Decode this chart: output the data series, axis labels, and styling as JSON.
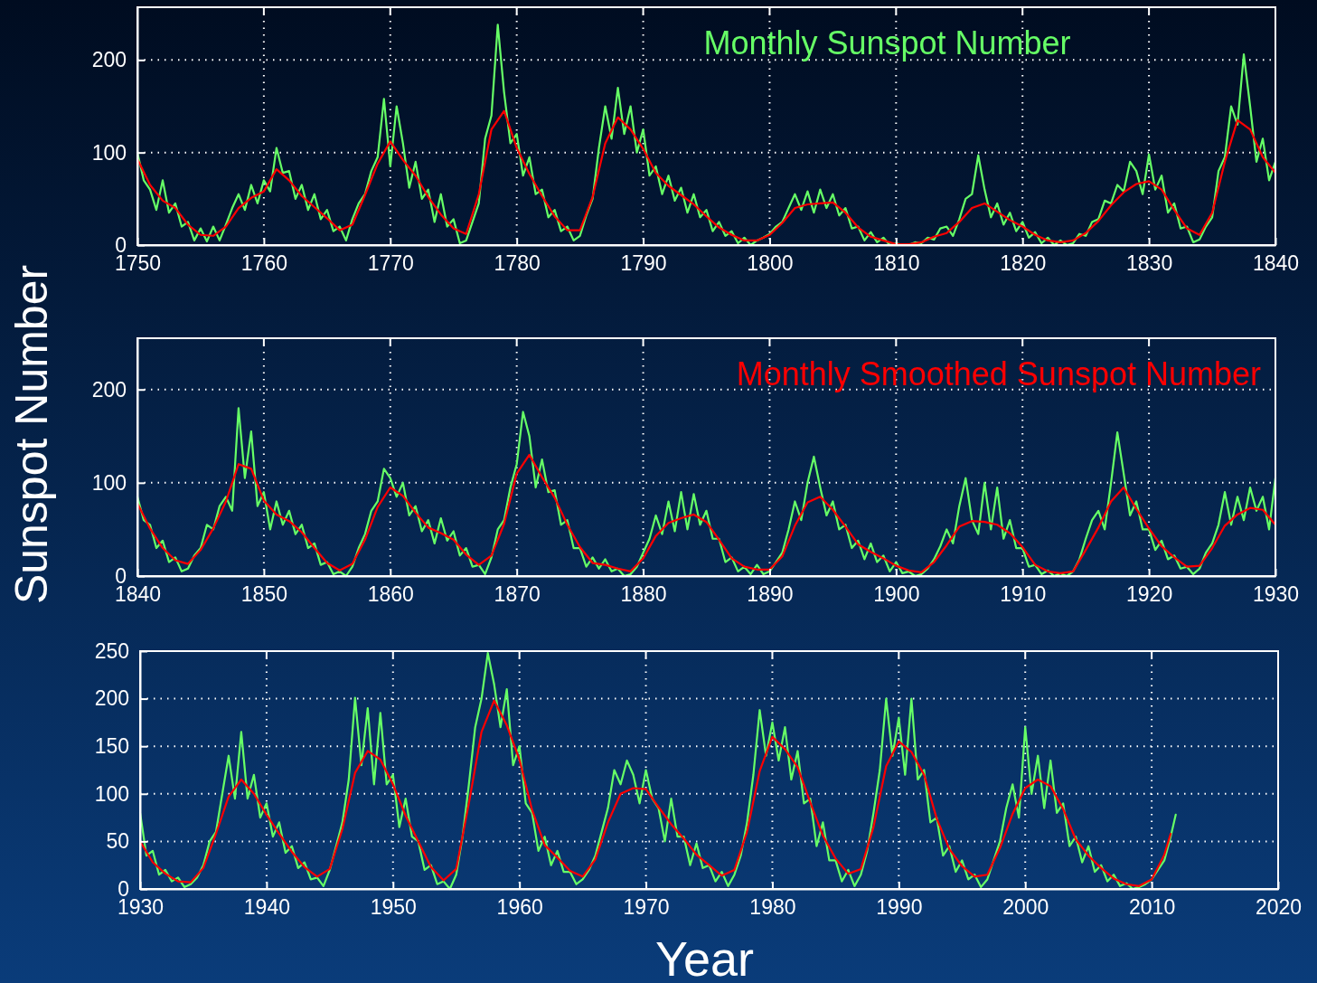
{
  "chart_data": [
    {
      "type": "line",
      "xlim": [
        1750,
        1840
      ],
      "xticks": [
        1750,
        1760,
        1770,
        1780,
        1790,
        1800,
        1810,
        1820,
        1830,
        1840
      ],
      "ylim": [
        0,
        257
      ],
      "yticks": [
        0,
        100,
        200
      ],
      "grid": true,
      "legend": "top",
      "line_style": "solid",
      "series": [
        {
          "name": "Monthly Sunspot Number",
          "color": "#66ff66",
          "x": [
            1750,
            1750.5,
            1751,
            1751.5,
            1752,
            1752.5,
            1753,
            1753.5,
            1754,
            1754.5,
            1755,
            1755.5,
            1756,
            1756.5,
            1757,
            1757.5,
            1758,
            1758.5,
            1759,
            1759.5,
            1760,
            1760.5,
            1761,
            1761.5,
            1762,
            1762.5,
            1763,
            1763.5,
            1764,
            1764.5,
            1765,
            1765.5,
            1766,
            1766.5,
            1767,
            1767.5,
            1768,
            1768.5,
            1769,
            1769.5,
            1770,
            1770.5,
            1771,
            1771.5,
            1772,
            1772.5,
            1773,
            1773.5,
            1774,
            1774.5,
            1775,
            1775.5,
            1776,
            1776.5,
            1777,
            1777.5,
            1778,
            1778.5,
            1779,
            1779.5,
            1780,
            1780.5,
            1781,
            1781.5,
            1782,
            1782.5,
            1783,
            1783.5,
            1784,
            1784.5,
            1785,
            1785.5,
            1786,
            1786.5,
            1787,
            1787.5,
            1788,
            1788.5,
            1789,
            1789.5,
            1790,
            1790.5,
            1791,
            1791.5,
            1792,
            1792.5,
            1793,
            1793.5,
            1794,
            1794.5,
            1795,
            1795.5,
            1796,
            1796.5,
            1797,
            1797.5,
            1798,
            1798.5,
            1799,
            1799.5,
            1800,
            1800.5,
            1801,
            1801.5,
            1802,
            1802.5,
            1803,
            1803.5,
            1804,
            1804.5,
            1805,
            1805.5,
            1806,
            1806.5,
            1807,
            1807.5,
            1808,
            1808.5,
            1809,
            1809.5,
            1810,
            1810.5,
            1811,
            1811.5,
            1812,
            1812.5,
            1813,
            1813.5,
            1814,
            1814.5,
            1815,
            1815.5,
            1816,
            1816.5,
            1817,
            1817.5,
            1818,
            1818.5,
            1819,
            1819.5,
            1820,
            1820.5,
            1821,
            1821.5,
            1822,
            1822.5,
            1823,
            1823.5,
            1824,
            1824.5,
            1825,
            1825.5,
            1826,
            1826.5,
            1827,
            1827.5,
            1828,
            1828.5,
            1829,
            1829.5,
            1830,
            1830.5,
            1831,
            1831.5,
            1832,
            1832.5,
            1833,
            1833.5,
            1834,
            1834.5,
            1835,
            1835.5,
            1836,
            1836.5,
            1837,
            1837.5,
            1838,
            1838.5,
            1839,
            1839.5,
            1840
          ],
          "values": [
            100,
            70,
            60,
            38,
            70,
            35,
            45,
            20,
            25,
            5,
            18,
            4,
            20,
            5,
            22,
            40,
            55,
            38,
            65,
            45,
            70,
            58,
            105,
            78,
            80,
            50,
            65,
            38,
            55,
            28,
            38,
            15,
            20,
            5,
            28,
            45,
            55,
            80,
            95,
            158,
            85,
            150,
            110,
            62,
            90,
            50,
            60,
            25,
            55,
            20,
            28,
            2,
            5,
            25,
            45,
            115,
            140,
            238,
            165,
            110,
            120,
            75,
            95,
            55,
            60,
            30,
            38,
            15,
            20,
            5,
            10,
            32,
            50,
            105,
            150,
            115,
            170,
            120,
            150,
            100,
            125,
            75,
            85,
            55,
            75,
            48,
            62,
            35,
            55,
            30,
            38,
            15,
            25,
            10,
            15,
            2,
            8,
            0,
            5,
            8,
            12,
            20,
            25,
            40,
            55,
            38,
            58,
            35,
            60,
            40,
            55,
            32,
            40,
            18,
            20,
            5,
            14,
            3,
            8,
            0,
            2,
            0,
            0,
            3,
            2,
            8,
            6,
            18,
            20,
            10,
            28,
            50,
            55,
            97,
            60,
            30,
            45,
            22,
            35,
            15,
            25,
            8,
            14,
            2,
            8,
            0,
            5,
            0,
            2,
            12,
            10,
            25,
            28,
            48,
            45,
            65,
            58,
            90,
            80,
            55,
            98,
            60,
            75,
            35,
            45,
            18,
            20,
            3,
            6,
            20,
            30,
            80,
            95,
            150,
            130,
            206,
            150,
            90,
            115,
            70,
            90
          ]
        },
        {
          "color": "#ff0000",
          "x": [
            1750,
            1751,
            1752,
            1753,
            1754,
            1755,
            1756,
            1757,
            1758,
            1759,
            1760,
            1761,
            1762,
            1763,
            1764,
            1765,
            1766,
            1767,
            1768,
            1769,
            1770,
            1771,
            1772,
            1773,
            1774,
            1775,
            1776,
            1777,
            1778,
            1779,
            1780,
            1781,
            1782,
            1783,
            1784,
            1785,
            1786,
            1787,
            1788,
            1789,
            1790,
            1791,
            1792,
            1793,
            1794,
            1795,
            1796,
            1797,
            1798,
            1799,
            1800,
            1801,
            1802,
            1803,
            1804,
            1805,
            1806,
            1807,
            1808,
            1809,
            1810,
            1811,
            1812,
            1813,
            1814,
            1815,
            1816,
            1817,
            1818,
            1819,
            1820,
            1821,
            1822,
            1823,
            1824,
            1825,
            1826,
            1827,
            1828,
            1829,
            1830,
            1831,
            1832,
            1833,
            1834,
            1835,
            1836,
            1837,
            1838,
            1839,
            1840
          ],
          "values": [
            93,
            65,
            48,
            40,
            22,
            11,
            10,
            20,
            40,
            51,
            58,
            82,
            70,
            53,
            41,
            29,
            16,
            22,
            54,
            88,
            112,
            92,
            75,
            52,
            33,
            18,
            12,
            55,
            125,
            145,
            105,
            77,
            53,
            31,
            16,
            16,
            52,
            110,
            138,
            125,
            104,
            78,
            64,
            54,
            44,
            31,
            19,
            11,
            5,
            5,
            11,
            24,
            40,
            44,
            45,
            46,
            35,
            19,
            9,
            5,
            1,
            1,
            3,
            9,
            13,
            25,
            40,
            45,
            36,
            27,
            20,
            11,
            5,
            3,
            5,
            13,
            26,
            43,
            57,
            66,
            69,
            60,
            38,
            18,
            11,
            35,
            90,
            135,
            125,
            95,
            78
          ]
        }
      ]
    },
    {
      "type": "line",
      "xlim": [
        1840,
        1930
      ],
      "xticks": [
        1840,
        1850,
        1860,
        1870,
        1880,
        1890,
        1900,
        1910,
        1920,
        1930
      ],
      "ylim": [
        0,
        255
      ],
      "yticks": [
        0,
        100,
        200
      ],
      "grid": true,
      "legend": "top right",
      "line_style": "solid",
      "ylabel": "Sunspot Number",
      "series": [
        {
          "color": "#66ff66",
          "x": [
            1840,
            1840.5,
            1841,
            1841.5,
            1842,
            1842.5,
            1843,
            1843.5,
            1844,
            1844.5,
            1845,
            1845.5,
            1846,
            1846.5,
            1847,
            1847.5,
            1848,
            1848.5,
            1849,
            1849.5,
            1850,
            1850.5,
            1851,
            1851.5,
            1852,
            1852.5,
            1853,
            1853.5,
            1854,
            1854.5,
            1855,
            1855.5,
            1856,
            1856.5,
            1857,
            1857.5,
            1858,
            1858.5,
            1859,
            1859.5,
            1860,
            1860.5,
            1861,
            1861.5,
            1862,
            1862.5,
            1863,
            1863.5,
            1864,
            1864.5,
            1865,
            1865.5,
            1866,
            1866.5,
            1867,
            1867.5,
            1868,
            1868.5,
            1869,
            1869.5,
            1870,
            1870.5,
            1871,
            1871.5,
            1872,
            1872.5,
            1873,
            1873.5,
            1874,
            1874.5,
            1875,
            1875.5,
            1876,
            1876.5,
            1877,
            1877.5,
            1878,
            1878.5,
            1879,
            1879.5,
            1880,
            1880.5,
            1881,
            1881.5,
            1882,
            1882.5,
            1883,
            1883.5,
            1884,
            1884.5,
            1885,
            1885.5,
            1886,
            1886.5,
            1887,
            1887.5,
            1888,
            1888.5,
            1889,
            1889.5,
            1890,
            1890.5,
            1891,
            1891.5,
            1892,
            1892.5,
            1893,
            1893.5,
            1894,
            1894.5,
            1895,
            1895.5,
            1896,
            1896.5,
            1897,
            1897.5,
            1898,
            1898.5,
            1899,
            1899.5,
            1900,
            1900.5,
            1901,
            1901.5,
            1902,
            1902.5,
            1903,
            1903.5,
            1904,
            1904.5,
            1905,
            1905.5,
            1906,
            1906.5,
            1907,
            1907.5,
            1908,
            1908.5,
            1909,
            1909.5,
            1910,
            1910.5,
            1911,
            1911.5,
            1912,
            1912.5,
            1913,
            1913.5,
            1914,
            1914.5,
            1915,
            1915.5,
            1916,
            1916.5,
            1917,
            1917.5,
            1918,
            1918.5,
            1919,
            1919.5,
            1920,
            1920.5,
            1921,
            1921.5,
            1922,
            1922.5,
            1923,
            1923.5,
            1924,
            1924.5,
            1925,
            1925.5,
            1926,
            1926.5,
            1927,
            1927.5,
            1928,
            1928.5,
            1929,
            1929.5,
            1930
          ],
          "values": [
            85,
            60,
            55,
            30,
            38,
            15,
            20,
            5,
            8,
            22,
            30,
            55,
            50,
            75,
            85,
            70,
            180,
            105,
            155,
            75,
            90,
            50,
            80,
            55,
            70,
            45,
            55,
            30,
            35,
            12,
            15,
            2,
            5,
            0,
            10,
            30,
            45,
            70,
            80,
            115,
            105,
            85,
            100,
            65,
            75,
            48,
            60,
            35,
            62,
            38,
            48,
            22,
            30,
            10,
            12,
            2,
            20,
            50,
            60,
            95,
            120,
            176,
            150,
            95,
            125,
            90,
            92,
            55,
            60,
            30,
            30,
            10,
            20,
            8,
            18,
            5,
            8,
            0,
            2,
            10,
            25,
            40,
            65,
            45,
            80,
            48,
            90,
            50,
            88,
            55,
            70,
            40,
            40,
            15,
            20,
            5,
            10,
            2,
            12,
            2,
            5,
            15,
            25,
            50,
            80,
            60,
            100,
            128,
            95,
            65,
            80,
            50,
            55,
            30,
            38,
            18,
            35,
            15,
            22,
            5,
            15,
            3,
            5,
            0,
            2,
            8,
            18,
            32,
            50,
            35,
            75,
            105,
            60,
            45,
            100,
            50,
            95,
            40,
            60,
            30,
            30,
            10,
            12,
            2,
            6,
            0,
            3,
            0,
            5,
            18,
            40,
            60,
            70,
            50,
            100,
            154,
            110,
            65,
            80,
            50,
            50,
            28,
            38,
            18,
            22,
            8,
            10,
            2,
            8,
            25,
            35,
            55,
            90,
            55,
            85,
            60,
            95,
            70,
            85,
            50,
            105
          ]
        },
        {
          "name": "Monthly Smoothed Sunspot Number",
          "color": "#ff0000",
          "x": [
            1840,
            1841,
            1842,
            1843,
            1844,
            1845,
            1846,
            1847,
            1848,
            1849,
            1850,
            1851,
            1852,
            1853,
            1854,
            1855,
            1856,
            1857,
            1858,
            1859,
            1860,
            1861,
            1862,
            1863,
            1864,
            1865,
            1866,
            1867,
            1868,
            1869,
            1870,
            1871,
            1872,
            1873,
            1874,
            1875,
            1876,
            1877,
            1878,
            1879,
            1880,
            1881,
            1882,
            1883,
            1884,
            1885,
            1886,
            1887,
            1888,
            1889,
            1890,
            1891,
            1892,
            1893,
            1894,
            1895,
            1896,
            1897,
            1898,
            1899,
            1900,
            1901,
            1902,
            1903,
            1904,
            1905,
            1906,
            1907,
            1908,
            1909,
            1910,
            1911,
            1912,
            1913,
            1914,
            1915,
            1916,
            1917,
            1918,
            1919,
            1920,
            1921,
            1922,
            1923,
            1924,
            1925,
            1926,
            1927,
            1928,
            1929,
            1930
          ],
          "values": [
            78,
            51,
            30,
            17,
            13,
            28,
            51,
            80,
            120,
            115,
            81,
            66,
            59,
            47,
            30,
            14,
            6,
            13,
            39,
            74,
            95,
            86,
            68,
            52,
            46,
            39,
            23,
            12,
            22,
            56,
            110,
            130,
            106,
            84,
            55,
            31,
            14,
            12,
            8,
            5,
            19,
            43,
            57,
            62,
            66,
            58,
            39,
            19,
            10,
            7,
            7,
            21,
            54,
            79,
            85,
            71,
            53,
            34,
            26,
            19,
            11,
            6,
            4,
            15,
            33,
            53,
            59,
            58,
            55,
            46,
            31,
            12,
            5,
            3,
            5,
            28,
            52,
            80,
            95,
            72,
            51,
            32,
            20,
            10,
            11,
            30,
            54,
            66,
            73,
            71,
            55
          ]
        }
      ]
    },
    {
      "type": "line",
      "xlim": [
        1930,
        2020
      ],
      "xticks": [
        1930,
        1940,
        1950,
        1960,
        1970,
        1980,
        1990,
        2000,
        2010,
        2020
      ],
      "ylim": [
        0,
        250
      ],
      "yticks": [
        0,
        50,
        100,
        150,
        200,
        250
      ],
      "grid": true,
      "line_style": "solid",
      "xlabel": "Year",
      "series": [
        {
          "color": "#66ff66",
          "x": [
            1930,
            1930.5,
            1931,
            1931.5,
            1932,
            1932.5,
            1933,
            1933.5,
            1934,
            1934.5,
            1935,
            1935.5,
            1936,
            1936.5,
            1937,
            1937.5,
            1938,
            1938.5,
            1939,
            1939.5,
            1940,
            1940.5,
            1941,
            1941.5,
            1942,
            1942.5,
            1943,
            1943.5,
            1944,
            1944.5,
            1945,
            1945.5,
            1946,
            1946.5,
            1947,
            1947.5,
            1948,
            1948.5,
            1949,
            1949.5,
            1950,
            1950.5,
            1951,
            1951.5,
            1952,
            1952.5,
            1953,
            1953.5,
            1954,
            1954.5,
            1955,
            1955.5,
            1956,
            1956.5,
            1957,
            1957.5,
            1958,
            1958.5,
            1959,
            1959.5,
            1960,
            1960.5,
            1961,
            1961.5,
            1962,
            1962.5,
            1963,
            1963.5,
            1964,
            1964.5,
            1965,
            1965.5,
            1966,
            1966.5,
            1967,
            1967.5,
            1968,
            1968.5,
            1969,
            1969.5,
            1970,
            1970.5,
            1971,
            1971.5,
            1972,
            1972.5,
            1973,
            1973.5,
            1974,
            1974.5,
            1975,
            1975.5,
            1976,
            1976.5,
            1977,
            1977.5,
            1978,
            1978.5,
            1979,
            1979.5,
            1980,
            1980.5,
            1981,
            1981.5,
            1982,
            1982.5,
            1983,
            1983.5,
            1984,
            1984.5,
            1985,
            1985.5,
            1986,
            1986.5,
            1987,
            1987.5,
            1988,
            1988.5,
            1989,
            1989.5,
            1990,
            1990.5,
            1991,
            1991.5,
            1992,
            1992.5,
            1993,
            1993.5,
            1994,
            1994.5,
            1995,
            1995.5,
            1996,
            1996.5,
            1997,
            1997.5,
            1998,
            1998.5,
            1999,
            1999.5,
            2000,
            2000.5,
            2001,
            2001.5,
            2002,
            2002.5,
            2003,
            2003.5,
            2004,
            2004.5,
            2005,
            2005.5,
            2006,
            2006.5,
            2007,
            2007.5,
            2008,
            2008.5,
            2009,
            2009.5,
            2010,
            2010.5,
            2011,
            2011.5,
            2011.9
          ],
          "values": [
            80,
            35,
            40,
            15,
            20,
            8,
            12,
            2,
            5,
            12,
            25,
            50,
            60,
            100,
            140,
            95,
            165,
            95,
            120,
            75,
            90,
            55,
            70,
            38,
            45,
            22,
            28,
            10,
            12,
            3,
            20,
            45,
            70,
            115,
            201,
            130,
            190,
            110,
            185,
            110,
            120,
            65,
            95,
            55,
            50,
            20,
            25,
            5,
            8,
            0,
            15,
            55,
            110,
            170,
            200,
            248,
            215,
            170,
            210,
            130,
            150,
            90,
            80,
            40,
            55,
            25,
            40,
            18,
            18,
            5,
            10,
            20,
            35,
            60,
            85,
            125,
            110,
            135,
            120,
            90,
            125,
            95,
            85,
            50,
            95,
            55,
            55,
            25,
            48,
            22,
            25,
            8,
            18,
            3,
            15,
            35,
            70,
            120,
            188,
            140,
            175,
            135,
            170,
            115,
            145,
            90,
            95,
            45,
            70,
            30,
            30,
            8,
            20,
            3,
            15,
            40,
            80,
            125,
            200,
            140,
            180,
            120,
            200,
            115,
            125,
            70,
            75,
            35,
            45,
            18,
            30,
            10,
            15,
            2,
            10,
            30,
            50,
            85,
            110,
            75,
            170,
            100,
            140,
            85,
            135,
            80,
            90,
            45,
            55,
            28,
            45,
            18,
            25,
            8,
            15,
            3,
            6,
            0,
            2,
            5,
            10,
            20,
            30,
            55,
            78
          ]
        },
        {
          "color": "#ff0000",
          "x": [
            1930,
            1931,
            1932,
            1933,
            1934,
            1935,
            1936,
            1937,
            1938,
            1939,
            1940,
            1941,
            1942,
            1943,
            1944,
            1945,
            1946,
            1947,
            1948,
            1949,
            1950,
            1951,
            1952,
            1953,
            1954,
            1955,
            1956,
            1957,
            1958,
            1959,
            1960,
            1961,
            1962,
            1963,
            1964,
            1965,
            1966,
            1967,
            1968,
            1969,
            1970,
            1971,
            1972,
            1973,
            1974,
            1975,
            1976,
            1977,
            1978,
            1979,
            1980,
            1981,
            1982,
            1983,
            1984,
            1985,
            1986,
            1987,
            1988,
            1989,
            1990,
            1991,
            1992,
            1993,
            1994,
            1995,
            1996,
            1997,
            1998,
            1999,
            2000,
            2001,
            2002,
            2003,
            2004,
            2005,
            2006,
            2007,
            2008,
            2009,
            2010,
            2011,
            2011.5
          ],
          "values": [
            50,
            28,
            16,
            8,
            7,
            22,
            58,
            97,
            115,
            100,
            78,
            58,
            39,
            23,
            13,
            21,
            63,
            122,
            145,
            136,
            110,
            77,
            50,
            23,
            9,
            21,
            90,
            165,
            198,
            172,
            136,
            83,
            46,
            33,
            19,
            13,
            31,
            70,
            100,
            106,
            105,
            86,
            68,
            53,
            36,
            25,
            14,
            20,
            60,
            124,
            160,
            147,
            128,
            91,
            56,
            32,
            16,
            21,
            65,
            129,
            155,
            144,
            120,
            74,
            42,
            24,
            13,
            15,
            43,
            79,
            106,
            115,
            108,
            84,
            52,
            35,
            22,
            11,
            5,
            3,
            10,
            36,
            58
          ]
        }
      ]
    }
  ]
}
